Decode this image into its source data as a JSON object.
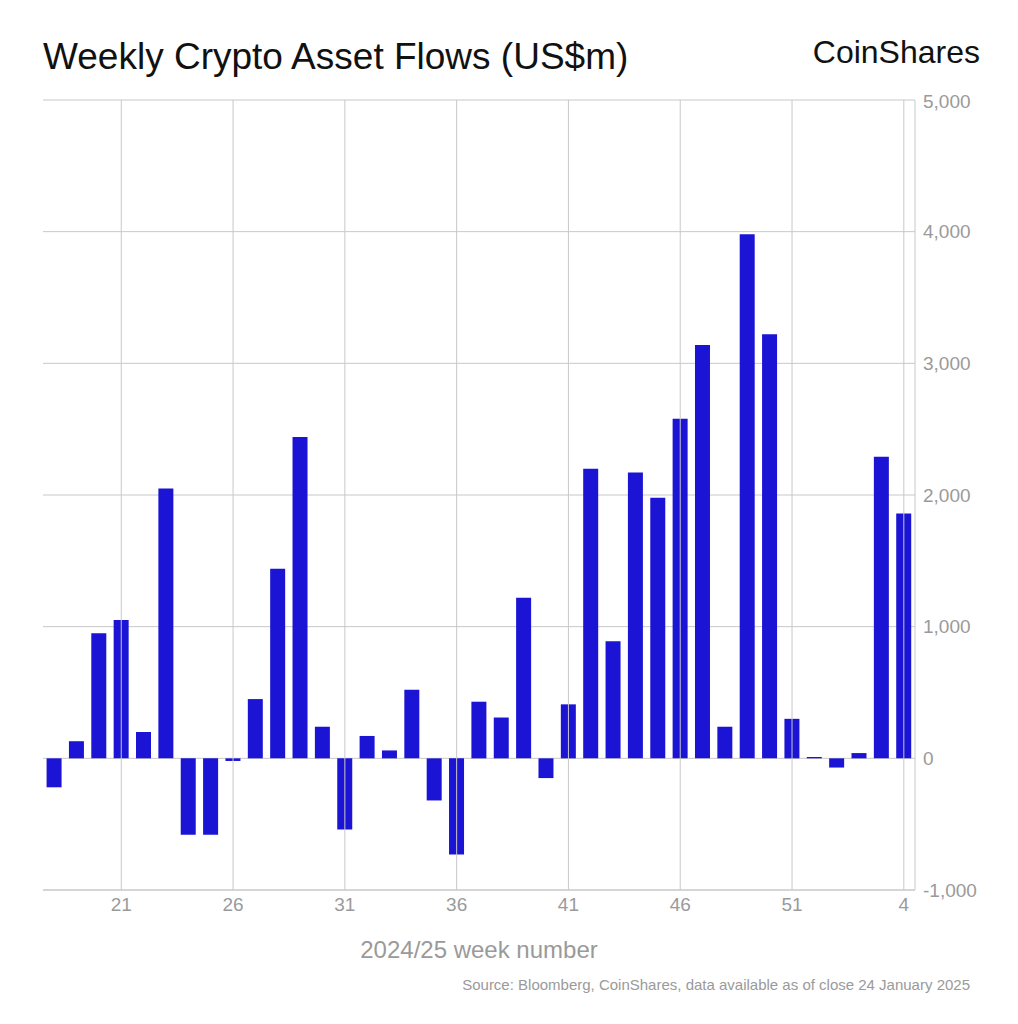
{
  "chart_data": {
    "type": "bar",
    "title": "Weekly Crypto Asset Flows (US$m)",
    "logo": "CoinShares",
    "source": "Source: Bloomberg, CoinShares, data available as of close 24 January 2025",
    "x_label": "2024/25 week number",
    "categories": [
      null,
      null,
      null,
      "21",
      null,
      null,
      null,
      null,
      "26",
      null,
      null,
      null,
      null,
      "31",
      null,
      null,
      null,
      null,
      "36",
      null,
      null,
      null,
      null,
      "41",
      null,
      null,
      null,
      null,
      "46",
      null,
      null,
      null,
      null,
      "51",
      null,
      null,
      null,
      null,
      "4"
    ],
    "values": [
      -220,
      130,
      950,
      1050,
      200,
      2050,
      -580,
      -580,
      -20,
      450,
      1440,
      2440,
      240,
      -540,
      170,
      60,
      520,
      -320,
      -730,
      430,
      310,
      1220,
      -150,
      410,
      2200,
      890,
      2170,
      1980,
      2580,
      3140,
      240,
      3980,
      3220,
      300,
      10,
      -70,
      40,
      2290,
      1860
    ],
    "color": "#1c14d4",
    "ylim": [
      -1000,
      5000
    ],
    "yticks": [
      {
        "value": -1000,
        "label": "-1,000"
      },
      0,
      {
        "value": 1000,
        "label": "1,000"
      },
      {
        "value": 2000,
        "label": "2,000"
      },
      {
        "value": 3000,
        "label": "3,000"
      },
      {
        "value": 4000,
        "label": "4,000"
      },
      {
        "value": 5000,
        "label": "5,000"
      }
    ],
    "grid": true
  }
}
